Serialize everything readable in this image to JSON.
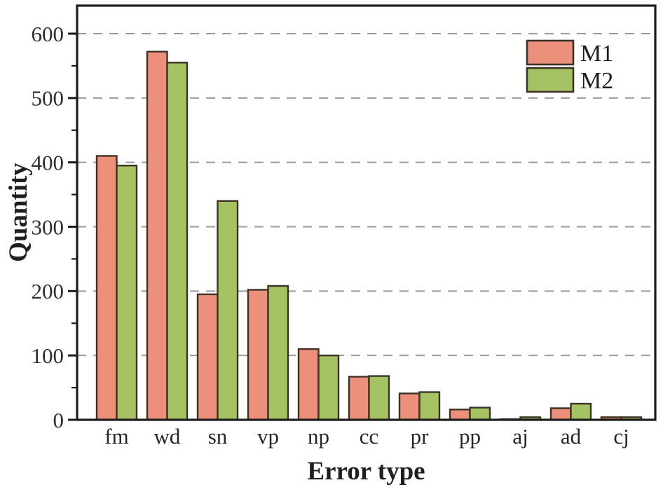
{
  "figure": {
    "background": "#ffffff"
  },
  "chart_data": {
    "type": "bar",
    "title": "",
    "xlabel": "Error type",
    "ylabel": "Quantity",
    "categories": [
      "fm",
      "wd",
      "sn",
      "vp",
      "np",
      "cc",
      "pr",
      "pp",
      "aj",
      "ad",
      "cj"
    ],
    "series": [
      {
        "name": "M1",
        "color": "#EC8F7B",
        "values": [
          410,
          572,
          195,
          202,
          110,
          67,
          41,
          16,
          1,
          18,
          4
        ]
      },
      {
        "name": "M2",
        "color": "#A5C363",
        "values": [
          395,
          555,
          340,
          208,
          100,
          68,
          43,
          19,
          4,
          25,
          4
        ]
      }
    ],
    "ylim": [
      0,
      645
    ],
    "yticks": [
      0,
      100,
      200,
      300,
      400,
      500,
      600
    ],
    "ytick_labels": [
      "0",
      "100",
      "200",
      "300",
      "400",
      "500",
      "600"
    ],
    "minor_ticks": [
      50,
      150,
      250,
      350,
      450,
      550
    ],
    "grid": "horizontal-dashed",
    "legend": {
      "position": "top-right",
      "entries": [
        "M1",
        "M2"
      ]
    },
    "colors": {
      "bar_edge": "#3E3126",
      "grid": "#9B9B9B",
      "axis": "#1B1B1B",
      "text": "#262626"
    }
  }
}
